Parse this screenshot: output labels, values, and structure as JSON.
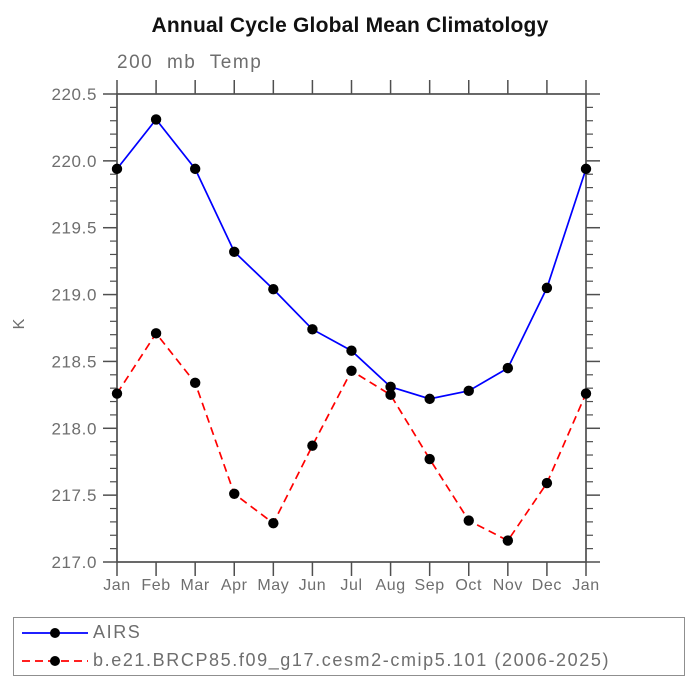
{
  "header": {
    "title": "Annual Cycle Global Mean Climatology",
    "subtitle": "200 mb Temp"
  },
  "axes": {
    "y_label": "K",
    "x_tick_labels": [
      "Jan",
      "Feb",
      "Mar",
      "Apr",
      "May",
      "Jun",
      "Jul",
      "Aug",
      "Sep",
      "Oct",
      "Nov",
      "Dec",
      "Jan"
    ],
    "y_tick_labels": [
      "220.5",
      "220.0",
      "219.5",
      "219.0",
      "218.5",
      "218.0",
      "217.5",
      "217.0"
    ]
  },
  "chart_data": {
    "type": "line",
    "title": "Annual Cycle Global Mean Climatology",
    "subtitle": "200 mb Temp",
    "xlabel": "",
    "ylabel": "K",
    "categories": [
      "Jan",
      "Feb",
      "Mar",
      "Apr",
      "May",
      "Jun",
      "Jul",
      "Aug",
      "Sep",
      "Oct",
      "Nov",
      "Dec",
      "Jan"
    ],
    "ylim": [
      217.0,
      220.5
    ],
    "ytick_step": 0.5,
    "yminor_step": 0.1,
    "grid": false,
    "legend_position": "bottom",
    "marker": "filled-circle",
    "marker_color": "#000000",
    "series": [
      {
        "name": "AIRS",
        "color": "#0000ff",
        "line_style": "solid",
        "values": [
          219.94,
          220.31,
          219.94,
          219.32,
          219.04,
          218.74,
          218.58,
          218.31,
          218.22,
          218.28,
          218.45,
          219.05,
          219.94
        ]
      },
      {
        "name": "b.e21.BRCP85.f09_g17.cesm2-cmip5.101 (2006-2025)",
        "color": "#ff0000",
        "line_style": "dashed",
        "values": [
          218.26,
          218.71,
          218.34,
          217.51,
          217.29,
          217.87,
          218.43,
          218.25,
          217.77,
          217.31,
          217.16,
          217.59,
          218.26
        ]
      }
    ]
  },
  "colors": {
    "axis": "#4f4f4f",
    "muted_text": "#6e6e6e",
    "marker": "#000000",
    "legend_border": "#8f8f8f"
  }
}
